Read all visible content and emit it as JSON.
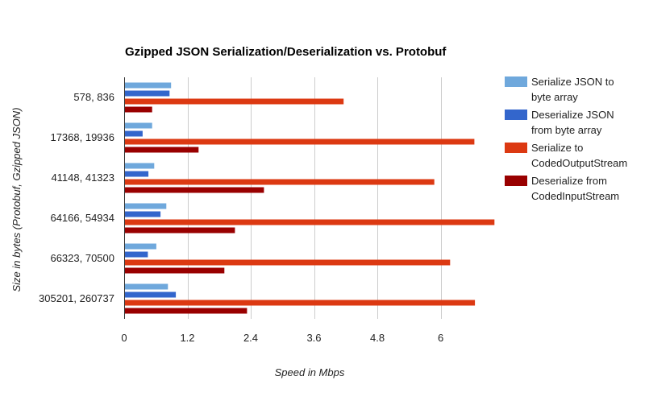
{
  "chart_data": {
    "type": "bar",
    "orientation": "horizontal",
    "title": "Gzipped JSON Serialization/Deserialization vs. Protobuf",
    "xlabel": "Speed in Mbps",
    "ylabel": "Size in bytes (Protobuf, Gzipped JSON)",
    "xlim": [
      0,
      7.0
    ],
    "xticks": [
      0,
      1.2,
      2.4,
      3.6,
      4.8,
      6
    ],
    "xtick_labels": [
      "0",
      "1.2",
      "2.4",
      "3.6",
      "4.8",
      "6"
    ],
    "grid": true,
    "legend_position": "right",
    "categories": [
      "578, 836",
      "17368, 19936",
      "41148, 41323",
      "64166, 54934",
      "66323, 70500",
      "305201, 260737"
    ],
    "series": [
      {
        "name_lines": [
          "Serialize JSON to",
          "byte array"
        ],
        "color": "#6fa8dc",
        "values": [
          0.89,
          0.53,
          0.57,
          0.8,
          0.61,
          0.83
        ]
      },
      {
        "name_lines": [
          "Deserialize JSON",
          "from byte array"
        ],
        "color": "#3366cc",
        "values": [
          0.86,
          0.35,
          0.46,
          0.69,
          0.45,
          0.98
        ]
      },
      {
        "name_lines": [
          "Serialize to",
          "CodedOutputStream"
        ],
        "color": "#dc3912",
        "values": [
          4.16,
          6.64,
          5.88,
          7.02,
          6.18,
          6.65
        ]
      },
      {
        "name_lines": [
          "Deserialize from",
          "CodedInputStream"
        ],
        "color": "#990000",
        "values": [
          0.53,
          1.41,
          2.65,
          2.1,
          1.9,
          2.33
        ]
      }
    ]
  }
}
